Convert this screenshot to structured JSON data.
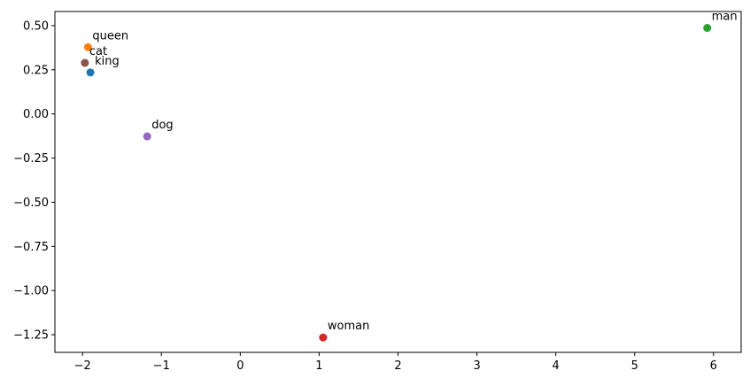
{
  "chart_data": {
    "type": "scatter",
    "title": "",
    "xlabel": "",
    "ylabel": "",
    "xlim": [
      -2.35,
      6.35
    ],
    "ylim": [
      -1.35,
      0.58
    ],
    "grid": false,
    "legend": "none",
    "x_ticks": [
      -2,
      -1,
      0,
      1,
      2,
      3,
      4,
      5,
      6
    ],
    "x_tick_labels": [
      "−2",
      "−1",
      "0",
      "1",
      "2",
      "3",
      "4",
      "5",
      "6"
    ],
    "y_ticks": [
      0.5,
      0.25,
      0.0,
      -0.25,
      -0.5,
      -0.75,
      -1.0,
      -1.25
    ],
    "y_tick_labels": [
      "0.50",
      "0.25",
      "0.00",
      "−0.25",
      "−0.50",
      "−0.75",
      "−1.00",
      "−1.25"
    ],
    "points": [
      {
        "label": "king",
        "x": -1.9,
        "y": 0.235,
        "color": "#1f77b4"
      },
      {
        "label": "queen",
        "x": -1.93,
        "y": 0.378,
        "color": "#ff7f0e"
      },
      {
        "label": "man",
        "x": 5.92,
        "y": 0.487,
        "color": "#2ca02c"
      },
      {
        "label": "woman",
        "x": 1.05,
        "y": -1.266,
        "color": "#d62728"
      },
      {
        "label": "dog",
        "x": -1.18,
        "y": -0.127,
        "color": "#9467bd"
      },
      {
        "label": "cat",
        "x": -1.97,
        "y": 0.289,
        "color": "#8c564b"
      }
    ]
  }
}
